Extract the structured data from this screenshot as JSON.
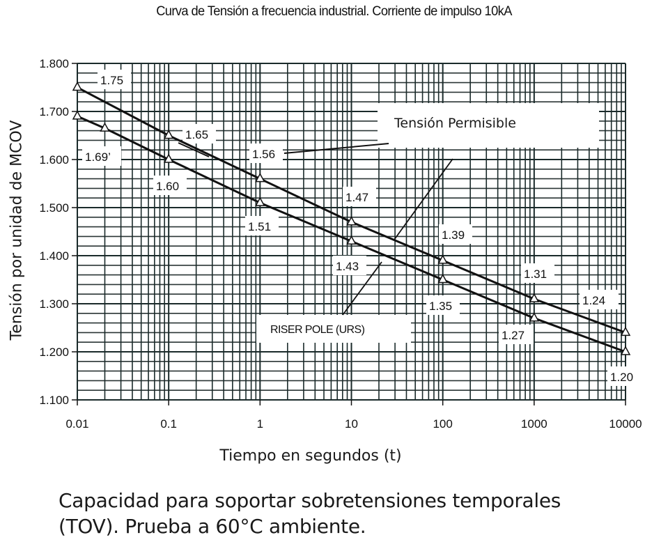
{
  "header": {
    "title": "Curva de Tensión a frecuencia industrial.  Corriente de impulso 10kA"
  },
  "axes": {
    "ylabel": "Tensión por unidad de MCOV",
    "xlabel": "Tiempo en segundos (t)",
    "yticks": [
      "1.800",
      "1.700",
      "1.600",
      "1.500",
      "1.400",
      "1.300",
      "1.200",
      "1.100"
    ],
    "xticks": [
      "0.01",
      "0.1",
      "1",
      "10",
      "100",
      "1000",
      "10000"
    ]
  },
  "legend": {
    "upper": "Tensión Permisible",
    "lower": "RISER POLE (URS)"
  },
  "caption": {
    "line1": "Capacidad para soportar sobretensiones temporales",
    "line2": "(TOV). Prueba a 60°C ambiente."
  },
  "point_labels": {
    "upper": [
      "1.75",
      "1.65",
      "1.56",
      "1.47",
      "1.39",
      "1.31",
      "1.24"
    ],
    "lower": [
      "1.69’",
      "1.60",
      "1.51",
      "1.43",
      "1.35",
      "1.27",
      "1.20"
    ]
  },
  "chart_data": {
    "type": "line",
    "title": "Curva de Tensión a frecuencia industrial.  Corriente de impulso 10kA",
    "xlabel": "Tiempo en segundos (t)",
    "ylabel": "Tensión por unidad de MCOV",
    "xscale": "log",
    "xlim": [
      0.01,
      10000
    ],
    "ylim": [
      1.1,
      1.8
    ],
    "grid": true,
    "marker": "triangle",
    "series": [
      {
        "name": "Tensión Permisible",
        "x": [
          0.01,
          0.1,
          1,
          10,
          100,
          1000,
          10000
        ],
        "values": [
          1.75,
          1.65,
          1.56,
          1.47,
          1.39,
          1.31,
          1.24
        ]
      },
      {
        "name": "RISER POLE (URS)",
        "x": [
          0.01,
          0.02,
          0.1,
          1,
          10,
          100,
          1000,
          10000
        ],
        "values": [
          1.69,
          1.665,
          1.6,
          1.51,
          1.43,
          1.35,
          1.27,
          1.2
        ]
      }
    ],
    "annotations": [
      "1.75",
      "1.65",
      "1.56",
      "1.47",
      "1.39",
      "1.31",
      "1.24",
      "1.69",
      "1.60",
      "1.51",
      "1.43",
      "1.35",
      "1.27",
      "1.20"
    ],
    "caption": "Capacidad para soportar sobretensiones temporales (TOV). Prueba a 60°C ambiente."
  }
}
